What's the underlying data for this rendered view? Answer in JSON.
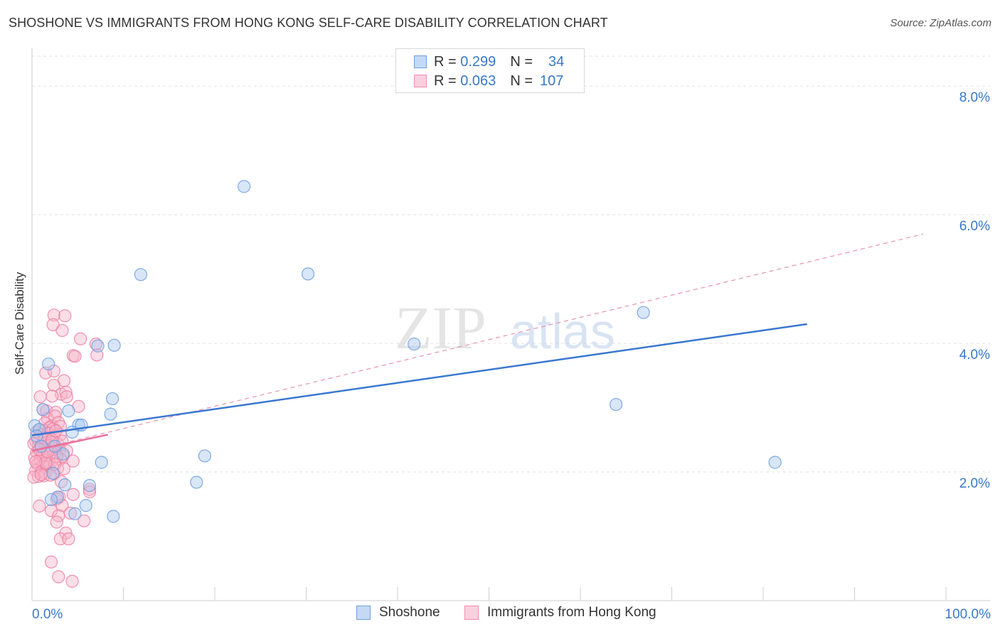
{
  "header": {
    "title": "SHOSHONE VS IMMIGRANTS FROM HONG KONG SELF-CARE DISABILITY CORRELATION CHART",
    "source": "Source: ZipAtlas.com"
  },
  "watermark": {
    "zip": "ZIP",
    "atlas": "atlas"
  },
  "legend_stats": [
    {
      "r_label": "R =",
      "r_value": "0.299",
      "n_label": "N =",
      "n_value": "34",
      "color": "#6b9ee0"
    },
    {
      "r_label": "R =",
      "r_value": "0.063",
      "n_label": "N =",
      "n_value": "107",
      "color": "#f08bab"
    }
  ],
  "bottom_legend": [
    {
      "label": "Shoshone",
      "color": "#6b9ee0"
    },
    {
      "label": "Immigrants from Hong Kong",
      "color": "#f08bab"
    }
  ],
  "chart_data": {
    "type": "scatter",
    "title": "SHOSHONE VS IMMIGRANTS FROM HONG KONG SELF-CARE DISABILITY CORRELATION CHART",
    "xlabel": "",
    "ylabel": "Self-Care Disability",
    "xlim": [
      0,
      100
    ],
    "ylim": [
      0,
      8.5
    ],
    "x_tick_labels": [
      "0.0%",
      "100.0%"
    ],
    "y_ticks": [
      2,
      4,
      6,
      8
    ],
    "y_tick_labels": [
      "2.0%",
      "4.0%",
      "6.0%",
      "8.0%"
    ],
    "grid": true,
    "legend_position": "top-center",
    "colors": {
      "shoshone": "#3a78d0",
      "hongkong": "#ec6f97",
      "tick_label": "#3a78c9"
    },
    "series": [
      {
        "name": "Shoshone",
        "points": [
          [
            23.2,
            6.44
          ],
          [
            11.9,
            5.07
          ],
          [
            30.2,
            5.08
          ],
          [
            66.9,
            4.48
          ],
          [
            41.8,
            3.99
          ],
          [
            7.2,
            3.96
          ],
          [
            9.0,
            3.97
          ],
          [
            1.8,
            3.68
          ],
          [
            8.8,
            3.14
          ],
          [
            1.2,
            2.97
          ],
          [
            4.0,
            2.95
          ],
          [
            8.6,
            2.9
          ],
          [
            63.9,
            3.05
          ],
          [
            5.1,
            2.73
          ],
          [
            5.4,
            2.73
          ],
          [
            0.3,
            2.72
          ],
          [
            4.4,
            2.62
          ],
          [
            0.8,
            2.66
          ],
          [
            0.5,
            2.56
          ],
          [
            3.4,
            2.28
          ],
          [
            18.9,
            2.25
          ],
          [
            7.6,
            2.15
          ],
          [
            81.3,
            2.15
          ],
          [
            2.3,
            1.98
          ],
          [
            18.0,
            1.84
          ],
          [
            3.6,
            1.8
          ],
          [
            6.3,
            1.79
          ],
          [
            2.8,
            1.61
          ],
          [
            2.1,
            1.57
          ],
          [
            5.9,
            1.48
          ],
          [
            4.7,
            1.35
          ],
          [
            8.9,
            1.31
          ],
          [
            1.0,
            2.4
          ],
          [
            2.5,
            2.4
          ]
        ],
        "trend": {
          "x": [
            0,
            84.8
          ],
          "y": [
            2.57,
            4.3
          ],
          "style": "solid"
        }
      },
      {
        "name": "Immigrants from Hong Kong",
        "points": [
          [
            2.4,
            4.44
          ],
          [
            3.6,
            4.43
          ],
          [
            2.3,
            4.29
          ],
          [
            3.3,
            4.2
          ],
          [
            5.3,
            4.07
          ],
          [
            7.0,
            3.99
          ],
          [
            7.1,
            3.82
          ],
          [
            4.5,
            3.81
          ],
          [
            4.7,
            3.8
          ],
          [
            1.5,
            3.54
          ],
          [
            2.4,
            3.57
          ],
          [
            3.5,
            3.42
          ],
          [
            2.4,
            3.35
          ],
          [
            3.2,
            3.21
          ],
          [
            3.7,
            3.24
          ],
          [
            0.9,
            3.17
          ],
          [
            2.2,
            3.18
          ],
          [
            3.8,
            3.17
          ],
          [
            5.1,
            3.02
          ],
          [
            1.2,
            2.97
          ],
          [
            1.6,
            2.95
          ],
          [
            2.6,
            2.93
          ],
          [
            1.7,
            2.83
          ],
          [
            2.5,
            2.87
          ],
          [
            1.4,
            2.76
          ],
          [
            2.2,
            2.72
          ],
          [
            2.9,
            2.77
          ],
          [
            0.8,
            2.66
          ],
          [
            1.3,
            2.64
          ],
          [
            1.9,
            2.69
          ],
          [
            2.3,
            2.67
          ],
          [
            3.1,
            2.71
          ],
          [
            0.5,
            2.62
          ],
          [
            1.0,
            2.58
          ],
          [
            1.8,
            2.6
          ],
          [
            2.4,
            2.55
          ],
          [
            3.1,
            2.58
          ],
          [
            0.4,
            2.48
          ],
          [
            1.2,
            2.5
          ],
          [
            1.5,
            2.45
          ],
          [
            2.1,
            2.46
          ],
          [
            2.8,
            2.44
          ],
          [
            3.3,
            2.48
          ],
          [
            0.7,
            2.4
          ],
          [
            1.1,
            2.39
          ],
          [
            1.7,
            2.36
          ],
          [
            2.3,
            2.38
          ],
          [
            3.0,
            2.35
          ],
          [
            3.8,
            2.33
          ],
          [
            0.5,
            2.31
          ],
          [
            1.3,
            2.29
          ],
          [
            1.9,
            2.28
          ],
          [
            2.6,
            2.3
          ],
          [
            3.4,
            2.25
          ],
          [
            0.3,
            2.22
          ],
          [
            0.9,
            2.2
          ],
          [
            1.6,
            2.19
          ],
          [
            2.2,
            2.17
          ],
          [
            3.1,
            2.2
          ],
          [
            4.5,
            2.17
          ],
          [
            0.6,
            2.12
          ],
          [
            1.2,
            2.1
          ],
          [
            1.8,
            2.08
          ],
          [
            2.8,
            2.06
          ],
          [
            0.4,
            2.02
          ],
          [
            1.0,
            2.0
          ],
          [
            1.5,
            1.98
          ],
          [
            2.4,
            1.97
          ],
          [
            0.7,
            1.93
          ],
          [
            1.3,
            1.94
          ],
          [
            2.0,
            1.95
          ],
          [
            3.2,
            1.85
          ],
          [
            6.3,
            1.73
          ],
          [
            6.3,
            1.69
          ],
          [
            4.5,
            1.65
          ],
          [
            3.0,
            1.61
          ],
          [
            2.7,
            1.58
          ],
          [
            0.8,
            1.47
          ],
          [
            3.3,
            1.48
          ],
          [
            2.1,
            1.4
          ],
          [
            4.2,
            1.36
          ],
          [
            2.9,
            1.32
          ],
          [
            5.7,
            1.24
          ],
          [
            2.7,
            1.22
          ],
          [
            3.7,
            1.05
          ],
          [
            3.1,
            0.96
          ],
          [
            4.0,
            0.96
          ],
          [
            2.1,
            0.6
          ],
          [
            2.9,
            0.37
          ],
          [
            4.4,
            0.3
          ],
          [
            0.6,
            2.52
          ],
          [
            1.4,
            2.53
          ],
          [
            2.0,
            2.34
          ],
          [
            2.7,
            2.24
          ],
          [
            0.2,
            2.44
          ],
          [
            1.1,
            2.26
          ],
          [
            1.8,
            2.41
          ],
          [
            2.5,
            2.12
          ],
          [
            0.8,
            2.35
          ],
          [
            1.5,
            2.14
          ],
          [
            2.2,
            2.5
          ],
          [
            0.4,
            2.16
          ],
          [
            1.7,
            2.31
          ],
          [
            2.6,
            2.64
          ],
          [
            3.5,
            2.05
          ],
          [
            0.2,
            1.92
          ],
          [
            1.0,
            1.96
          ]
        ],
        "trend": {
          "x": [
            0,
            8.3
          ],
          "y": [
            2.33,
            2.58
          ],
          "style": "solid"
        },
        "trend_extended": {
          "x": [
            0,
            97.5
          ],
          "y": [
            2.33,
            5.7
          ],
          "style": "dashed"
        }
      }
    ]
  }
}
